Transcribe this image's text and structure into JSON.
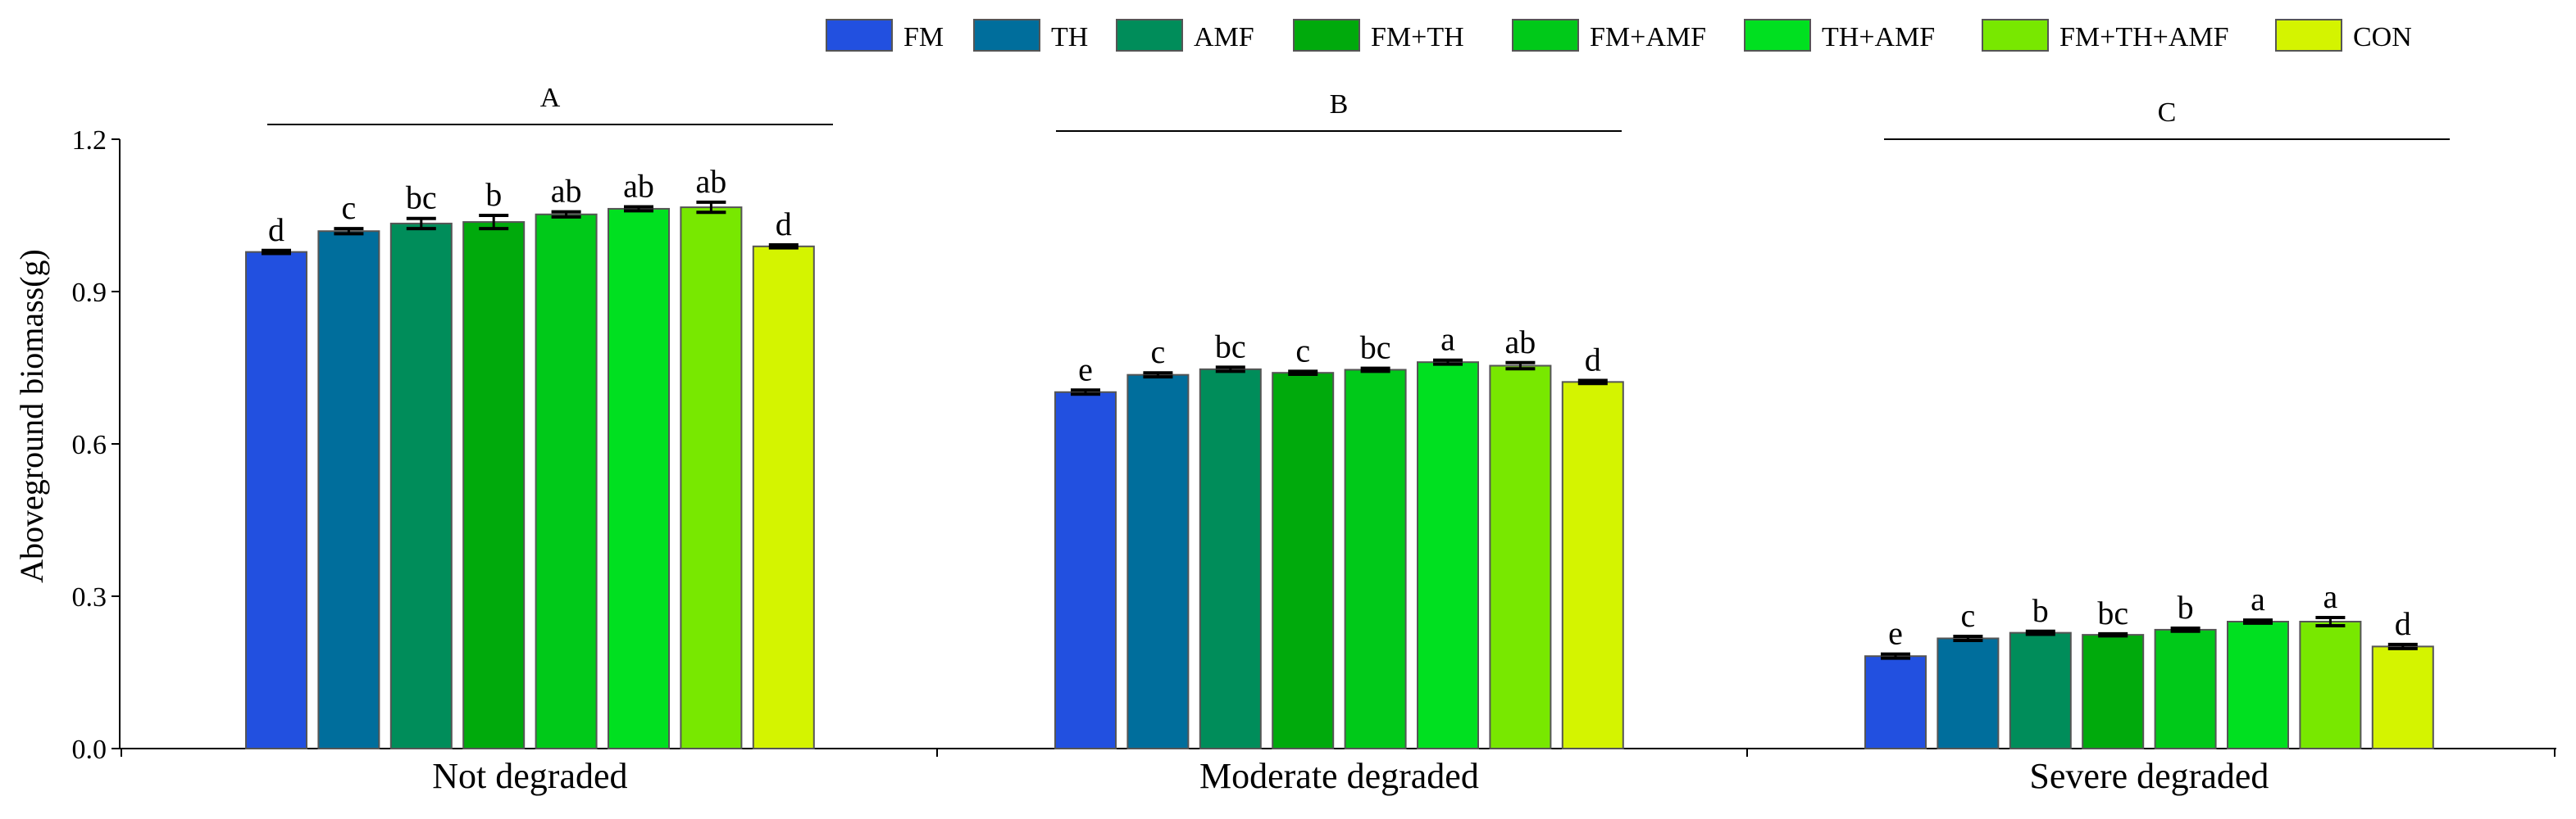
{
  "chart_data": {
    "type": "bar",
    "title": "",
    "xlabel": "",
    "ylabel": "Aboveground biomass(g)",
    "ylim": [
      0,
      1.2
    ],
    "yticks": [
      0.0,
      0.3,
      0.6,
      0.9,
      1.2
    ],
    "ytick_labels": [
      "0.0",
      "0.3",
      "0.6",
      "0.9",
      "1.2"
    ],
    "grid": false,
    "legend_position": "top",
    "categories": [
      "Not degraded",
      "Moderate degraded",
      "Severe degraded"
    ],
    "group_labels": [
      "A",
      "B",
      "C"
    ],
    "series": [
      {
        "name": "FM",
        "color": "#2250e0",
        "values": [
          0.978,
          0.702,
          0.182
        ],
        "errors": [
          0.003,
          0.004,
          0.004
        ],
        "sig": [
          "d",
          "e",
          "e"
        ]
      },
      {
        "name": "TH",
        "color": "#006e9c",
        "values": [
          1.019,
          0.736,
          0.217
        ],
        "errors": [
          0.005,
          0.004,
          0.004
        ],
        "sig": [
          "c",
          "c",
          "c"
        ]
      },
      {
        "name": "AMF",
        "color": "#008d5a",
        "values": [
          1.034,
          0.747,
          0.228
        ],
        "errors": [
          0.01,
          0.004,
          0.003
        ],
        "sig": [
          "bc",
          "bc",
          "b"
        ]
      },
      {
        "name": "FM+TH",
        "color": "#00aa0c",
        "values": [
          1.037,
          0.74,
          0.224
        ],
        "errors": [
          0.013,
          0.003,
          0.002
        ],
        "sig": [
          "b",
          "c",
          "bc"
        ]
      },
      {
        "name": "FM+AMF",
        "color": "#00c919",
        "values": [
          1.052,
          0.746,
          0.234
        ],
        "errors": [
          0.005,
          0.003,
          0.003
        ],
        "sig": [
          "ab",
          "bc",
          "b"
        ]
      },
      {
        "name": "TH+AMF",
        "color": "#00e020",
        "values": [
          1.063,
          0.761,
          0.25
        ],
        "errors": [
          0.004,
          0.004,
          0.003
        ],
        "sig": [
          "ab",
          "a",
          "a"
        ]
      },
      {
        "name": "FM+TH+AMF",
        "color": "#78e800",
        "values": [
          1.066,
          0.754,
          0.25
        ],
        "errors": [
          0.01,
          0.006,
          0.008
        ],
        "sig": [
          "ab",
          "ab",
          "a"
        ]
      },
      {
        "name": "CON",
        "color": "#d4f400",
        "values": [
          0.989,
          0.722,
          0.201
        ],
        "errors": [
          0.003,
          0.003,
          0.004
        ],
        "sig": [
          "d",
          "d",
          "d"
        ]
      }
    ]
  }
}
